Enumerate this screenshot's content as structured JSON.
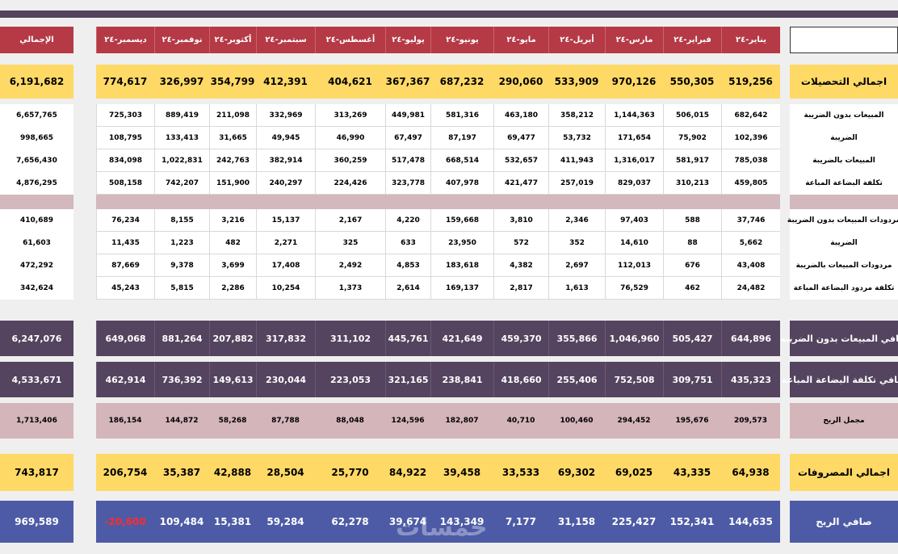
{
  "header": {
    "total_label": "الإجمالي",
    "months": [
      "ديسمبر-٢٤",
      "نوفمبر-٢٤",
      "أكتوبر-٢٤",
      "سبتمبر-٢٤",
      "أغسطس-٢٤",
      "يوليو-٢٤",
      "يونيو-٢٤",
      "مايو-٢٤",
      "أبريل-٢٤",
      "مارس-٢٤",
      "فبراير-٢٤",
      "يناير-٢٤"
    ]
  },
  "rows": {
    "collections": {
      "label": "اجمالي التحصيلات",
      "total": "6,191,682",
      "values": [
        "774,617",
        "326,997",
        "354,799",
        "412,391",
        "404,621",
        "367,367",
        "687,232",
        "290,060",
        "533,909",
        "970,126",
        "550,305",
        "519,256"
      ]
    },
    "sales_pre_tax": {
      "label": "المبيعات بدون الضريبة",
      "total": "6,657,765",
      "values": [
        "725,303",
        "889,419",
        "211,098",
        "332,969",
        "313,269",
        "449,981",
        "581,316",
        "463,180",
        "358,212",
        "1,144,363",
        "506,015",
        "682,642"
      ]
    },
    "tax": {
      "label": "الضريبة",
      "total": "998,665",
      "values": [
        "108,795",
        "133,413",
        "31,665",
        "49,945",
        "46,990",
        "67,497",
        "87,197",
        "69,477",
        "53,732",
        "171,654",
        "75,902",
        "102,396"
      ]
    },
    "sales_with_tax": {
      "label": "المبيعات بالضريبة",
      "total": "7,656,430",
      "values": [
        "834,098",
        "1,022,831",
        "242,763",
        "382,914",
        "360,259",
        "517,478",
        "668,514",
        "532,657",
        "411,943",
        "1,316,017",
        "581,917",
        "785,038"
      ]
    },
    "cogs": {
      "label": "تكلفة البضاعة المباعة",
      "total": "4,876,295",
      "values": [
        "508,158",
        "742,207",
        "151,900",
        "240,297",
        "224,426",
        "323,778",
        "407,978",
        "421,477",
        "257,019",
        "829,037",
        "310,213",
        "459,805"
      ]
    },
    "returns_pre_tax": {
      "label": "مردودات المبيعات بدون الضريبة",
      "total": "410,689",
      "values": [
        "76,234",
        "8,155",
        "3,216",
        "15,137",
        "2,167",
        "4,220",
        "159,668",
        "3,810",
        "2,346",
        "97,403",
        "588",
        "37,746"
      ]
    },
    "returns_tax": {
      "label": "الضريبة",
      "total": "61,603",
      "values": [
        "11,435",
        "1,223",
        "482",
        "2,271",
        "325",
        "633",
        "23,950",
        "572",
        "352",
        "14,610",
        "88",
        "5,662"
      ]
    },
    "returns_with_tax": {
      "label": "مردودات المبيعات بالضريبة",
      "total": "472,292",
      "values": [
        "87,669",
        "9,378",
        "3,699",
        "17,408",
        "2,492",
        "4,853",
        "183,618",
        "4,382",
        "2,697",
        "112,013",
        "676",
        "43,408"
      ]
    },
    "returns_cost": {
      "label": "تكلفة مردود البضاعة المباعة",
      "total": "342,624",
      "values": [
        "45,243",
        "5,815",
        "2,286",
        "10,254",
        "1,373",
        "2,614",
        "169,137",
        "2,817",
        "1,613",
        "76,529",
        "462",
        "24,482"
      ]
    },
    "net_sales": {
      "label": "صافي المبيعات بدون الضريبه",
      "total": "6,247,076",
      "values": [
        "649,068",
        "881,264",
        "207,882",
        "317,832",
        "311,102",
        "445,761",
        "421,649",
        "459,370",
        "355,866",
        "1,046,960",
        "505,427",
        "644,896"
      ]
    },
    "net_cogs": {
      "label": "صافي تكلفة البضاعة المباعة",
      "total": "4,533,671",
      "values": [
        "462,914",
        "736,392",
        "149,613",
        "230,044",
        "223,053",
        "321,165",
        "238,841",
        "418,660",
        "255,406",
        "752,508",
        "309,751",
        "435,323"
      ]
    },
    "gross_profit": {
      "label": "مجمل الربح",
      "total": "1,713,406",
      "values": [
        "186,154",
        "144,872",
        "58,268",
        "87,788",
        "88,048",
        "124,596",
        "182,807",
        "40,710",
        "100,460",
        "294,452",
        "195,676",
        "209,573"
      ]
    },
    "expenses": {
      "label": "اجمالي المصروفات",
      "total": "743,817",
      "values": [
        "206,754",
        "35,387",
        "42,888",
        "28,504",
        "25,770",
        "84,922",
        "39,458",
        "33,533",
        "69,302",
        "69,025",
        "43,335",
        "64,938"
      ]
    },
    "net_profit": {
      "label": "صافي الربح",
      "total": "969,589",
      "values": [
        "-20,600",
        "109,484",
        "15,381",
        "59,284",
        "62,278",
        "39,674",
        "143,349",
        "7,177",
        "31,158",
        "225,427",
        "152,341",
        "144,635"
      ]
    }
  },
  "colors": {
    "header": "#b53a46",
    "yellow": "#ffd966",
    "purple": "#54445f",
    "pink": "#d3b5ba",
    "blue": "#4d5ba6",
    "negative": "#ff2b2b"
  },
  "watermark": "خمسات"
}
